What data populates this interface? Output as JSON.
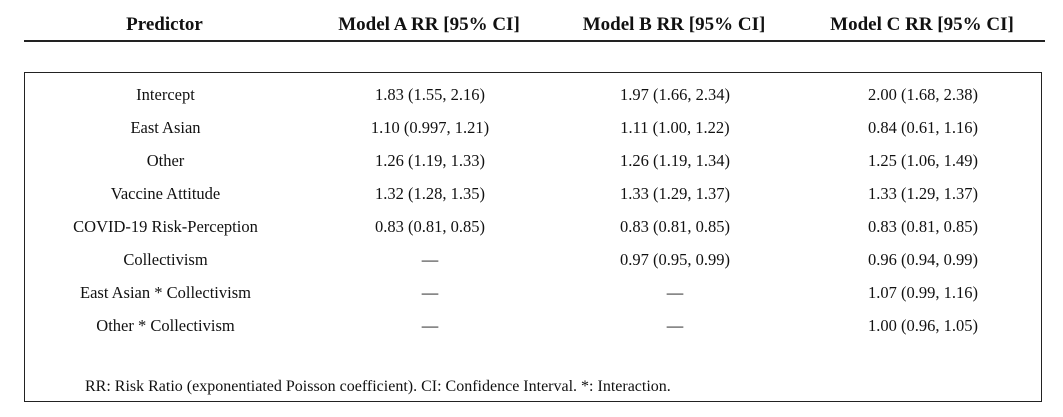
{
  "table": {
    "headers": [
      "Predictor",
      "Model A RR [95% CI]",
      "Model B RR [95% CI]",
      "Model C RR [95% CI]"
    ],
    "rows": [
      [
        "Intercept",
        "1.83 (1.55, 2.16)",
        "1.97 (1.66, 2.34)",
        "2.00 (1.68, 2.38)"
      ],
      [
        "East Asian",
        "1.10 (0.997, 1.21)",
        "1.11 (1.00, 1.22)",
        "0.84 (0.61, 1.16)"
      ],
      [
        "Other",
        "1.26 (1.19, 1.33)",
        "1.26 (1.19, 1.34)",
        "1.25 (1.06, 1.49)"
      ],
      [
        "Vaccine Attitude",
        "1.32 (1.28, 1.35)",
        "1.33 (1.29, 1.37)",
        "1.33 (1.29, 1.37)"
      ],
      [
        "COVID-19 Risk-Perception",
        "0.83 (0.81, 0.85)",
        "0.83 (0.81, 0.85)",
        "0.83 (0.81, 0.85)"
      ],
      [
        "Collectivism",
        "—",
        "0.97 (0.95, 0.99)",
        "0.96 (0.94, 0.99)"
      ],
      [
        "East Asian * Collectivism",
        "—",
        "—",
        "1.07 (0.99, 1.16)"
      ],
      [
        "Other * Collectivism",
        "—",
        "—",
        "1.00 (0.96, 1.05)"
      ]
    ],
    "footnote": "RR: Risk Ratio (exponentiated Poisson coefficient). CI: Confidence Interval. *: Interaction."
  }
}
